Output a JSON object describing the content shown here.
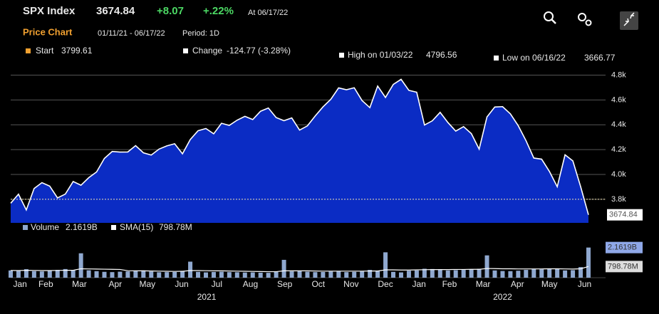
{
  "header": {
    "ticker": "SPX Index",
    "change": "+8.07",
    "change_pct": "+.22%",
    "as_of": "At 06/17/22"
  },
  "chart_data": [
    {
      "type": "area",
      "title": "Price Chart",
      "subtitle": "01/11/21 - 06/17/22",
      "period": "Period: 1D",
      "color": "#0b2cc4",
      "line_color": "#ffffff",
      "start_label": "Start",
      "start_value": 3799.61,
      "change_label": "Change",
      "change_value": "-124.77 (-3.28%)",
      "high_label": "High on 01/03/22",
      "high_value": 4796.56,
      "low_label": "Low on 06/16/22",
      "low_value": 3666.77,
      "values": [
        3768,
        3841,
        3714,
        3887,
        3934,
        3906,
        3811,
        3842,
        3943,
        3913,
        3974,
        4020,
        4129,
        4185,
        4180,
        4181,
        4232,
        4174,
        4156,
        4204,
        4230,
        4247,
        4166,
        4281,
        4352,
        4370,
        4327,
        4412,
        4395,
        4437,
        4468,
        4442,
        4509,
        4535,
        4458,
        4433,
        4455,
        4357,
        4391,
        4471,
        4544,
        4605,
        4697,
        4682,
        4698,
        4595,
        4538,
        4712,
        4620,
        4725,
        4766,
        4677,
        4662,
        4398,
        4432,
        4500,
        4418,
        4349,
        4385,
        4329,
        4204,
        4463,
        4543,
        4546,
        4488,
        4393,
        4272,
        4132,
        4123,
        4024,
        3901,
        4158,
        4109,
        3901,
        3674.84
      ],
      "xlim": [
        0,
        74
      ],
      "xticks": [
        {
          "value": 1.2,
          "label": "Jan"
        },
        {
          "value": 4.5,
          "label": "Feb"
        },
        {
          "value": 8.8,
          "label": "Mar"
        },
        {
          "value": 13.4,
          "label": "Apr"
        },
        {
          "value": 17.5,
          "label": "May"
        },
        {
          "value": 21.9,
          "label": "Jun"
        },
        {
          "value": 26.4,
          "label": "Jul"
        },
        {
          "value": 30.7,
          "label": "Aug"
        },
        {
          "value": 35.1,
          "label": "Sep"
        },
        {
          "value": 39.4,
          "label": "Oct"
        },
        {
          "value": 43.6,
          "label": "Nov"
        },
        {
          "value": 48,
          "label": "Dec"
        },
        {
          "value": 52.3,
          "label": "Jan"
        },
        {
          "value": 56.2,
          "label": "Feb"
        },
        {
          "value": 60.5,
          "label": "Mar"
        },
        {
          "value": 64.9,
          "label": "Apr"
        },
        {
          "value": 69,
          "label": "May"
        },
        {
          "value": 73.5,
          "label": "Jun"
        }
      ],
      "years": [
        {
          "value": 25.1,
          "label": "2021"
        },
        {
          "value": 63,
          "label": "2022"
        }
      ],
      "ylim": [
        3610,
        4860
      ],
      "yticks": [
        {
          "value": 3800,
          "label": "3.8k"
        },
        {
          "value": 4000,
          "label": "4.0k"
        },
        {
          "value": 4200,
          "label": "4.2k"
        },
        {
          "value": 4400,
          "label": "4.4k"
        },
        {
          "value": 4600,
          "label": "4.6k"
        },
        {
          "value": 4800,
          "label": "4.8k"
        }
      ],
      "grid": true
    },
    {
      "type": "bar",
      "xlim": [
        0,
        74
      ],
      "ylim": [
        0,
        2400000000
      ],
      "series": [
        {
          "name": "Volume",
          "color": "#8fa8cf",
          "last": {
            "value": 2161900000,
            "label": "2.1619B"
          },
          "values": [
            520000000,
            480000000,
            610000000,
            470000000,
            450000000,
            500000000,
            560000000,
            620000000,
            540000000,
            1750000000,
            530000000,
            470000000,
            420000000,
            400000000,
            430000000,
            450000000,
            480000000,
            520000000,
            440000000,
            390000000,
            400000000,
            410000000,
            480000000,
            1150000000,
            420000000,
            380000000,
            410000000,
            430000000,
            400000000,
            390000000,
            370000000,
            380000000,
            360000000,
            350000000,
            420000000,
            1280000000,
            450000000,
            480000000,
            430000000,
            400000000,
            410000000,
            440000000,
            470000000,
            400000000,
            420000000,
            450000000,
            560000000,
            480000000,
            1820000000,
            420000000,
            380000000,
            500000000,
            520000000,
            640000000,
            620000000,
            560000000,
            520000000,
            540000000,
            560000000,
            610000000,
            640000000,
            1600000000,
            520000000,
            480000000,
            470000000,
            500000000,
            560000000,
            620000000,
            600000000,
            640000000,
            620000000,
            520000000,
            540000000,
            760000000,
            2161900000
          ]
        },
        {
          "name": "SMA(15)",
          "color": "#ffffff",
          "last": {
            "value": 798780000,
            "label": "798.78M"
          },
          "values": [
            520000000,
            510000000,
            530000000,
            520000000,
            510000000,
            510000000,
            520000000,
            530000000,
            530000000,
            640000000,
            630000000,
            620000000,
            610000000,
            600000000,
            590000000,
            500000000,
            490000000,
            490000000,
            480000000,
            470000000,
            460000000,
            450000000,
            460000000,
            510000000,
            510000000,
            500000000,
            490000000,
            490000000,
            480000000,
            470000000,
            460000000,
            450000000,
            440000000,
            430000000,
            430000000,
            490000000,
            490000000,
            490000000,
            490000000,
            480000000,
            470000000,
            470000000,
            470000000,
            470000000,
            470000000,
            470000000,
            480000000,
            480000000,
            560000000,
            560000000,
            550000000,
            550000000,
            560000000,
            570000000,
            580000000,
            580000000,
            580000000,
            590000000,
            590000000,
            600000000,
            600000000,
            660000000,
            650000000,
            640000000,
            640000000,
            630000000,
            630000000,
            630000000,
            630000000,
            640000000,
            640000000,
            630000000,
            620000000,
            640000000,
            798780000
          ]
        }
      ]
    }
  ]
}
